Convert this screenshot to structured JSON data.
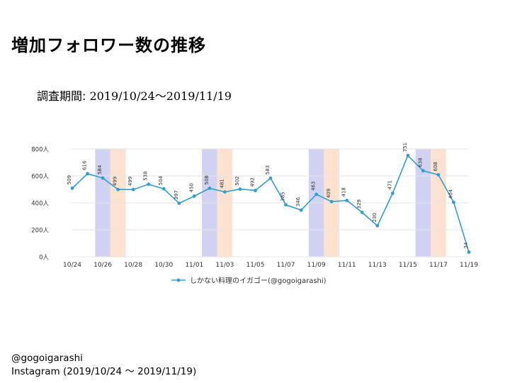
{
  "page": {
    "title": "増加フォロワー数の推移",
    "period_label": "調査期間:",
    "period_value": "2019/10/24〜2019/11/19",
    "footer_account": "@gogoigarashi",
    "footer_source": "Instagram (2019/10/24 〜 2019/11/19)"
  },
  "colors": {
    "line": "#2e9fd0",
    "saturday_band": "#d2d2f3",
    "sunday_band": "#fde3cf",
    "grid": "#e6e6e6",
    "text": "#333333"
  },
  "chart_data": {
    "type": "line",
    "title": "",
    "xlabel": "",
    "ylabel": "",
    "ylim": [
      0,
      800
    ],
    "yticks": [
      "0人",
      "200人",
      "400人",
      "600人",
      "800人"
    ],
    "ytick_values": [
      0,
      200,
      400,
      600,
      800
    ],
    "x": [
      "10/24",
      "10/25",
      "10/26",
      "10/27",
      "10/28",
      "10/29",
      "10/30",
      "10/31",
      "11/01",
      "11/02",
      "11/03",
      "11/04",
      "11/05",
      "11/06",
      "11/07",
      "11/08",
      "11/09",
      "11/10",
      "11/11",
      "11/12",
      "11/13",
      "11/14",
      "11/15",
      "11/16",
      "11/17",
      "11/18",
      "11/19"
    ],
    "xtick_labels": [
      "10/24",
      "10/26",
      "10/28",
      "10/30",
      "11/01",
      "11/03",
      "11/05",
      "11/07",
      "11/09",
      "11/11",
      "11/13",
      "11/15",
      "11/17",
      "11/19"
    ],
    "series": [
      {
        "name": "しかない料理のイガゴー(@gogoigarashi)",
        "values": [
          509,
          616,
          584,
          499,
          499,
          538,
          504,
          397,
          450,
          508,
          481,
          502,
          492,
          583,
          385,
          346,
          463,
          409,
          418,
          329,
          230,
          471,
          751,
          638,
          608,
          404,
          34
        ],
        "labels": [
          "509",
          "616",
          "584",
          "499",
          "499",
          "538",
          "504",
          "397",
          "450",
          "508",
          "481",
          "502",
          "492",
          "583",
          "385",
          "346",
          "463",
          "409",
          "418",
          "329",
          "230",
          "471",
          "751",
          "638",
          "608",
          "404",
          "34"
        ]
      }
    ],
    "weekend_bands": [
      {
        "date": "10/26",
        "day": "saturday"
      },
      {
        "date": "10/27",
        "day": "sunday"
      },
      {
        "date": "11/02",
        "day": "saturday"
      },
      {
        "date": "11/03",
        "day": "sunday"
      },
      {
        "date": "11/09",
        "day": "saturday"
      },
      {
        "date": "11/10",
        "day": "sunday"
      },
      {
        "date": "11/16",
        "day": "saturday"
      },
      {
        "date": "11/17",
        "day": "sunday"
      }
    ],
    "legend_position": "bottom",
    "grid": true
  }
}
